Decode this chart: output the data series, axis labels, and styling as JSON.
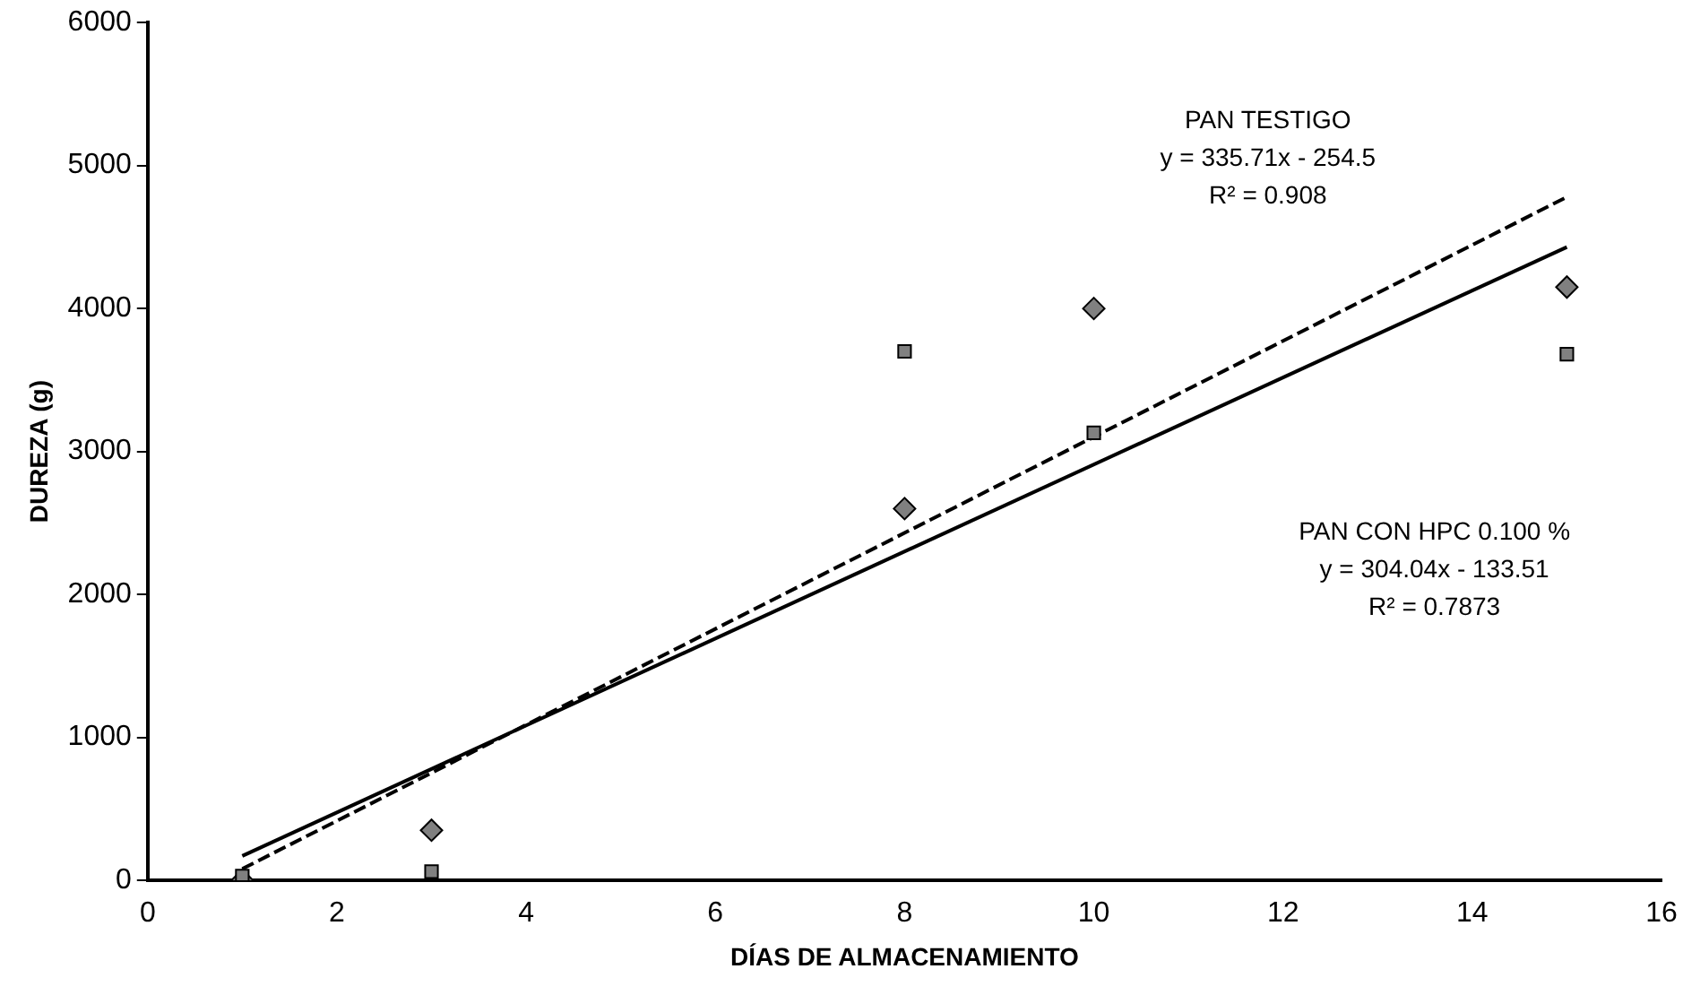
{
  "chart_data": {
    "type": "scatter",
    "xlabel": "DÍAS DE ALMACENAMIENTO",
    "ylabel": "DUREZA (g)",
    "xlim": [
      0,
      16
    ],
    "xticks": [
      0,
      2,
      4,
      6,
      8,
      10,
      12,
      14,
      16
    ],
    "ylim": [
      0,
      6000
    ],
    "yticks": [
      0,
      1000,
      2000,
      3000,
      4000,
      5000,
      6000
    ],
    "grid": false,
    "series": [
      {
        "marker": "diamond",
        "color": "#808080",
        "x": [
          1,
          3,
          8,
          10,
          15
        ],
        "values": [
          0,
          350,
          2600,
          4000,
          4150
        ]
      },
      {
        "marker": "square",
        "color": "#808080",
        "x": [
          1,
          3,
          8,
          10,
          15
        ],
        "values": [
          30,
          60,
          3700,
          3130,
          3680
        ]
      },
      {
        "type": "line",
        "marker": "none",
        "line_style": "dashed",
        "color": "#000000",
        "x": [
          1,
          15
        ],
        "values": [
          80,
          4780
        ]
      },
      {
        "type": "line",
        "marker": "none",
        "line_style": "solid",
        "color": "#000000",
        "x": [
          1,
          15
        ],
        "values": [
          170,
          4430
        ]
      }
    ],
    "annotations": [
      "PAN TESTIGO\ny = 335.71x - 254.5\nR² = 0.908",
      "PAN CON HPC 0.100 %\ny = 304.04x - 133.51\nR² = 0.7873"
    ]
  }
}
